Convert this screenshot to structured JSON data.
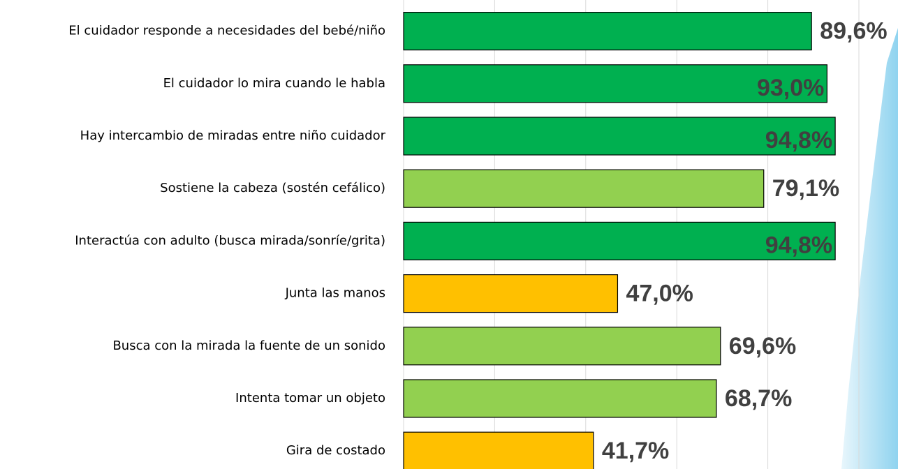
{
  "chart_data": {
    "type": "barh",
    "categories": [
      "El cuidador responde a necesidades del bebé/niño",
      "El cuidador lo mira cuando le habla",
      "Hay intercambio de miradas entre niño cuidador",
      "Sostiene la cabeza (sostén cefálico)",
      "Interactúa con adulto (busca mirada/sonríe/grita)",
      "Junta las manos",
      "Busca con la mirada la fuente de un sonido",
      "Intenta tomar un objeto",
      "Gira de costado"
    ],
    "values": [
      89.6,
      93.0,
      94.8,
      79.1,
      94.8,
      47.0,
      69.6,
      68.7,
      41.7
    ],
    "value_labels": [
      "89,6%",
      "93,0%",
      "94,8%",
      "79,1%",
      "94,8%",
      "47,0%",
      "69,6%",
      "68,7%",
      "41,7%"
    ],
    "colors": [
      "#00b050",
      "#00b050",
      "#00b050",
      "#92d050",
      "#00b050",
      "#ffc000",
      "#92d050",
      "#92d050",
      "#ffc000"
    ],
    "xlim": [
      0,
      100
    ],
    "xticks": [
      0,
      20,
      40,
      60,
      80,
      100
    ],
    "grid": true
  }
}
